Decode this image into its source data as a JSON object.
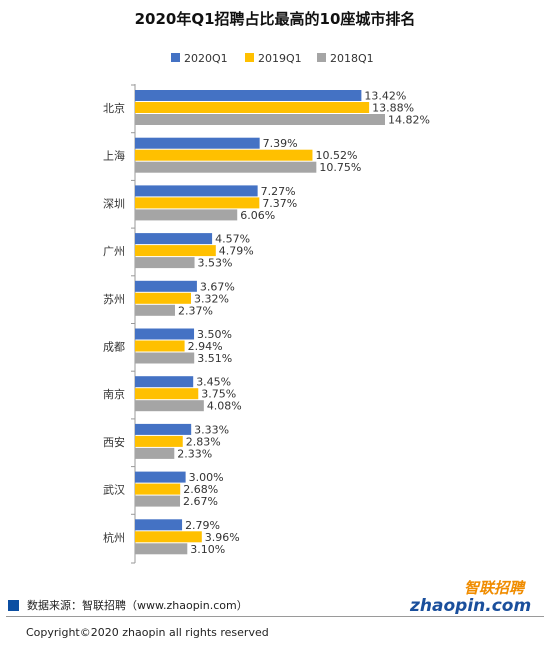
{
  "chart_data": {
    "type": "bar",
    "orientation": "horizontal",
    "title": "2020年Q1招聘占比最高的10座城市排名",
    "categories": [
      "北京",
      "上海",
      "深圳",
      "广州",
      "苏州",
      "成都",
      "南京",
      "西安",
      "武汉",
      "杭州"
    ],
    "series": [
      {
        "name": "2020Q1",
        "color": "#4472c4",
        "values": [
          13.42,
          7.39,
          7.27,
          4.57,
          3.67,
          3.5,
          3.45,
          3.33,
          3.0,
          2.79
        ],
        "labels": [
          "13.42%",
          "7.39%",
          "7.27%",
          "4.57%",
          "3.67%",
          "3.50%",
          "3.45%",
          "3.33%",
          "3.00%",
          "2.79%"
        ]
      },
      {
        "name": "2019Q1",
        "color": "#ffc000",
        "values": [
          13.88,
          10.52,
          7.37,
          4.79,
          3.32,
          2.94,
          3.75,
          2.83,
          2.68,
          3.96
        ],
        "labels": [
          "13.88%",
          "10.52%",
          "7.37%",
          "4.79%",
          "3.32%",
          "2.94%",
          "3.75%",
          "2.83%",
          "2.68%",
          "3.96%"
        ]
      },
      {
        "name": "2018Q1",
        "color": "#a5a5a5",
        "values": [
          14.82,
          10.75,
          6.06,
          3.53,
          2.37,
          3.51,
          4.08,
          2.33,
          2.67,
          3.1
        ],
        "labels": [
          "14.82%",
          "10.75%",
          "6.06%",
          "3.53%",
          "2.37%",
          "3.51%",
          "4.08%",
          "2.33%",
          "2.67%",
          "3.10%"
        ]
      }
    ],
    "xlim": [
      0,
      16
    ],
    "legend_position": "top",
    "grid": false
  },
  "footer": {
    "source": "数据来源：智联招聘（www.zhaopin.com）",
    "copyright": "Copyright©2020 zhaopin all rights reserved"
  },
  "logo": {
    "text_cn": "智联招聘",
    "text_en": "zhaopin.com"
  }
}
